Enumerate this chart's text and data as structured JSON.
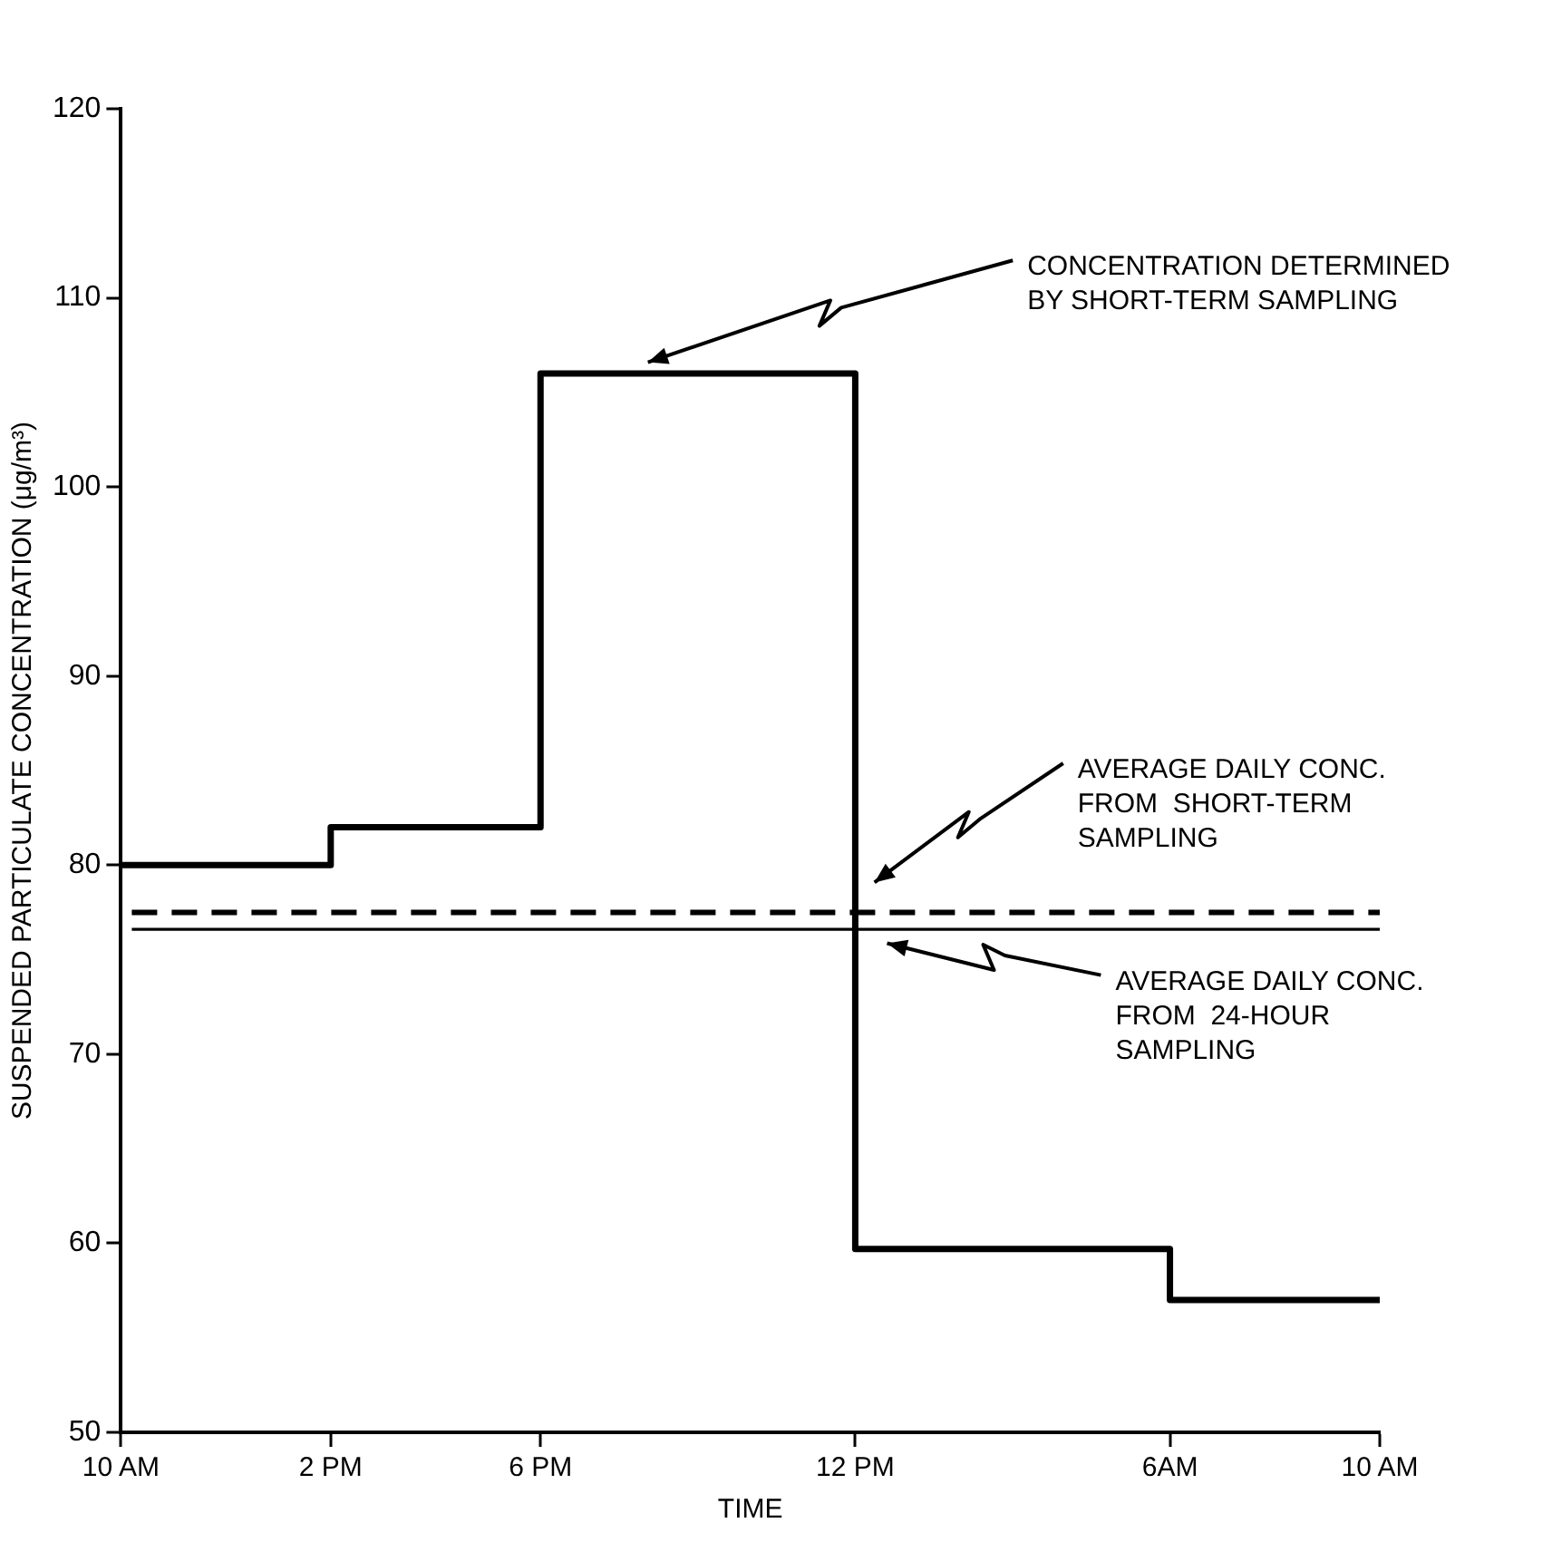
{
  "chart_data": {
    "type": "step",
    "xlabel": "TIME",
    "ylabel": "SUSPENDED PARTICULATE CONCENTRATION (μg/m³)",
    "categories": [
      "10 AM",
      null,
      null,
      null,
      "2 PM",
      null,
      null,
      null,
      "6 PM",
      null,
      null,
      null,
      null,
      null,
      "12 PM",
      null,
      null,
      null,
      null,
      null,
      "6AM",
      null,
      null,
      null,
      "10 AM"
    ],
    "series": [
      {
        "color": "#000000",
        "values": [
          80,
          80,
          80,
          80,
          82,
          82,
          82,
          82,
          106,
          106,
          106,
          106,
          106,
          106,
          59.7,
          59.7,
          59.7,
          59.7,
          59.7,
          59.7,
          57,
          57,
          57,
          57,
          57
        ]
      }
    ],
    "ylim": [
      50,
      120
    ],
    "yticks": [
      50,
      60,
      70,
      80,
      90,
      100,
      110,
      120
    ],
    "ref_lines": [
      {
        "axis": "y",
        "value": 77.5,
        "color": "#000000",
        "line_style": "dashed"
      },
      {
        "axis": "y",
        "value": 76.6,
        "color": "#000000",
        "line_style": "solid"
      }
    ],
    "annotations": [
      "CONCENTRATION DETERMINED\nBY SHORT-TERM SAMPLING",
      "AVERAGE DAILY CONC.\nFROM  SHORT-TERM\nSAMPLING",
      "AVERAGE DAILY CONC.\nFROM  24-HOUR\nSAMPLING"
    ],
    "grid": false,
    "legend": false,
    "marker": "none",
    "line_style": "solid"
  }
}
